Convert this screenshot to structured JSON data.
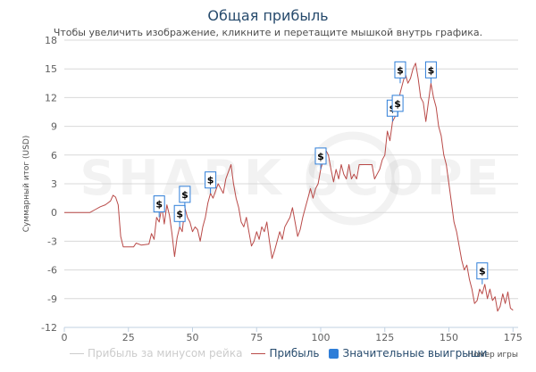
{
  "chart_data": {
    "type": "line",
    "title": "Общая прибыль",
    "subtitle": "Чтобы увеличить изображение, кликните и перетащите мышкой внутрь графика.",
    "xlabel": "Номер игры",
    "ylabel": "Суммарный итог (USD)",
    "xlim": [
      0,
      177
    ],
    "ylim": [
      -12,
      18
    ],
    "x_ticks": [
      0,
      25,
      50,
      75,
      100,
      125,
      150,
      175
    ],
    "y_ticks": [
      18,
      15,
      12,
      9,
      6,
      3,
      0,
      -3,
      -6,
      -9,
      -12
    ],
    "grid": true,
    "watermark": "SHARK SCOPE",
    "marker_label": "$",
    "series": [
      {
        "name": "Прибыль за минусом рейка",
        "color": "#cccccc",
        "visible": false
      },
      {
        "name": "Прибыль",
        "color": "#b94a48",
        "points": [
          [
            0,
            0
          ],
          [
            10,
            0
          ],
          [
            12,
            0.3
          ],
          [
            14,
            0.6
          ],
          [
            16,
            0.8
          ],
          [
            18,
            1.2
          ],
          [
            19,
            1.8
          ],
          [
            20,
            1.6
          ],
          [
            21,
            0.8
          ],
          [
            22,
            -2.5
          ],
          [
            23,
            -3.6
          ],
          [
            25,
            -3.6
          ],
          [
            27,
            -3.6
          ],
          [
            28,
            -3.2
          ],
          [
            30,
            -3.4
          ],
          [
            33,
            -3.3
          ],
          [
            34,
            -2.2
          ],
          [
            35,
            -2.8
          ],
          [
            36,
            -0.5
          ],
          [
            37,
            -1.0
          ],
          [
            38,
            0.6
          ],
          [
            39,
            -1.2
          ],
          [
            40,
            0.8
          ],
          [
            41,
            -0.3
          ],
          [
            42,
            -2.2
          ],
          [
            43,
            -4.6
          ],
          [
            44,
            -2.6
          ],
          [
            45,
            -1.5
          ],
          [
            46,
            -2.0
          ],
          [
            47,
            0.5
          ],
          [
            48,
            -0.5
          ],
          [
            49,
            -1.0
          ],
          [
            50,
            -2.0
          ],
          [
            51,
            -1.5
          ],
          [
            52,
            -1.8
          ],
          [
            53,
            -3.0
          ],
          [
            54,
            -1.5
          ],
          [
            55,
            -0.5
          ],
          [
            56,
            1.0
          ],
          [
            57,
            2.0
          ],
          [
            58,
            1.5
          ],
          [
            60,
            3.0
          ],
          [
            62,
            2.0
          ],
          [
            63,
            3.5
          ],
          [
            65,
            5.0
          ],
          [
            66,
            3.0
          ],
          [
            67,
            1.5
          ],
          [
            68,
            0.5
          ],
          [
            69,
            -1.0
          ],
          [
            70,
            -1.5
          ],
          [
            71,
            -0.5
          ],
          [
            72,
            -2.0
          ],
          [
            73,
            -3.5
          ],
          [
            74,
            -3.0
          ],
          [
            75,
            -2.0
          ],
          [
            76,
            -2.8
          ],
          [
            77,
            -1.5
          ],
          [
            78,
            -2.0
          ],
          [
            79,
            -1.0
          ],
          [
            80,
            -3.0
          ],
          [
            81,
            -4.8
          ],
          [
            82,
            -4.0
          ],
          [
            83,
            -3.0
          ],
          [
            84,
            -2.0
          ],
          [
            85,
            -2.8
          ],
          [
            86,
            -1.5
          ],
          [
            87,
            -1.0
          ],
          [
            88,
            -0.5
          ],
          [
            89,
            0.5
          ],
          [
            90,
            -1.0
          ],
          [
            91,
            -2.5
          ],
          [
            92,
            -1.8
          ],
          [
            93,
            -0.5
          ],
          [
            94,
            0.5
          ],
          [
            95,
            1.5
          ],
          [
            96,
            2.5
          ],
          [
            97,
            1.5
          ],
          [
            98,
            2.5
          ],
          [
            99,
            3.0
          ],
          [
            100,
            4.5
          ],
          [
            101,
            5.5
          ],
          [
            102,
            6.5
          ],
          [
            103,
            6.0
          ],
          [
            104,
            4.5
          ],
          [
            105,
            3.2
          ],
          [
            106,
            4.5
          ],
          [
            107,
            3.5
          ],
          [
            108,
            5.0
          ],
          [
            109,
            4.0
          ],
          [
            110,
            3.5
          ],
          [
            111,
            5.0
          ],
          [
            112,
            3.5
          ],
          [
            113,
            4.0
          ],
          [
            114,
            3.5
          ],
          [
            115,
            5.0
          ],
          [
            118,
            5.0
          ],
          [
            120,
            5.0
          ],
          [
            121,
            3.5
          ],
          [
            122,
            4.0
          ],
          [
            123,
            4.5
          ],
          [
            124,
            5.5
          ],
          [
            125,
            6.0
          ],
          [
            126,
            8.5
          ],
          [
            127,
            7.5
          ],
          [
            128,
            9.5
          ],
          [
            129,
            10.0
          ],
          [
            130,
            11.0
          ],
          [
            131,
            12.5
          ],
          [
            132,
            13.5
          ],
          [
            133,
            14.5
          ],
          [
            134,
            13.5
          ],
          [
            135,
            14.0
          ],
          [
            136,
            15.0
          ],
          [
            137,
            15.6
          ],
          [
            138,
            14.0
          ],
          [
            139,
            12.0
          ],
          [
            140,
            11.5
          ],
          [
            141,
            9.5
          ],
          [
            142,
            11.5
          ],
          [
            143,
            13.5
          ],
          [
            144,
            12.0
          ],
          [
            145,
            11.0
          ],
          [
            146,
            9.0
          ],
          [
            147,
            8.0
          ],
          [
            148,
            6.0
          ],
          [
            149,
            5.0
          ],
          [
            150,
            3.0
          ],
          [
            151,
            1.0
          ],
          [
            152,
            -1.0
          ],
          [
            153,
            -2.0
          ],
          [
            154,
            -3.5
          ],
          [
            155,
            -5.0
          ],
          [
            156,
            -6.0
          ],
          [
            157,
            -5.5
          ],
          [
            158,
            -7.0
          ],
          [
            159,
            -8.0
          ],
          [
            160,
            -9.5
          ],
          [
            161,
            -9.2
          ],
          [
            162,
            -8.0
          ],
          [
            163,
            -8.5
          ],
          [
            164,
            -7.5
          ],
          [
            165,
            -9.0
          ],
          [
            166,
            -8.0
          ],
          [
            167,
            -9.2
          ],
          [
            168,
            -8.8
          ],
          [
            169,
            -10.3
          ],
          [
            170,
            -9.8
          ],
          [
            171,
            -8.5
          ],
          [
            172,
            -9.5
          ],
          [
            173,
            -8.3
          ],
          [
            174,
            -10.0
          ],
          [
            175,
            -10.2
          ]
        ]
      },
      {
        "name": "Значительные выигрыши",
        "color": "#2f7ed8",
        "markers": [
          [
            37,
            -0.5
          ],
          [
            45,
            -1.5
          ],
          [
            47,
            0.5
          ],
          [
            57,
            2.0
          ],
          [
            100,
            4.5
          ],
          [
            128,
            9.5
          ],
          [
            130,
            10.0
          ],
          [
            131,
            13.5
          ],
          [
            143,
            13.5
          ],
          [
            163,
            -7.5
          ]
        ]
      }
    ]
  }
}
